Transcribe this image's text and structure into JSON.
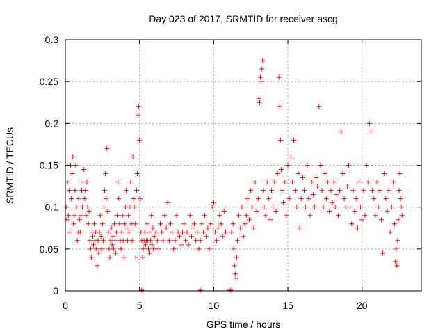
{
  "chart_data": {
    "type": "scatter",
    "title": "Day 023 of 2017, SRMTID for receiver ascg",
    "xlabel": "GPS time / hours",
    "ylabel": "SRMTID / TECUs",
    "xlim": [
      0,
      24
    ],
    "ylim": [
      0,
      0.3
    ],
    "xticks": [
      0,
      5,
      10,
      15,
      20
    ],
    "xtick_labels": [
      "0",
      "5",
      "10",
      "15",
      "20"
    ],
    "yticks": [
      0,
      0.05,
      0.1,
      0.15,
      0.2,
      0.25,
      0.3
    ],
    "ytick_labels": [
      "0",
      "0.05",
      "0.1",
      "0.15",
      "0.2",
      "0.25",
      "0.3"
    ],
    "grid": true,
    "marker": "plus",
    "color": "#ff0000",
    "series": [
      {
        "name": "SRMTID",
        "points": [
          [
            0.05,
            0.1
          ],
          [
            0.1,
            0.085
          ],
          [
            0.15,
            0.13
          ],
          [
            0.2,
            0.09
          ],
          [
            0.25,
            0.12
          ],
          [
            0.3,
            0.07
          ],
          [
            0.35,
            0.15
          ],
          [
            0.4,
            0.11
          ],
          [
            0.45,
            0.14
          ],
          [
            0.5,
            0.16
          ],
          [
            0.55,
            0.08
          ],
          [
            0.6,
            0.09
          ],
          [
            0.65,
            0.12
          ],
          [
            0.7,
            0.15
          ],
          [
            0.75,
            0.1
          ],
          [
            0.8,
            0.06
          ],
          [
            0.85,
            0.07
          ],
          [
            0.9,
            0.11
          ],
          [
            0.95,
            0.085
          ],
          [
            1.0,
            0.07
          ],
          [
            1.05,
            0.09
          ],
          [
            1.1,
            0.12
          ],
          [
            1.15,
            0.1
          ],
          [
            1.2,
            0.13
          ],
          [
            1.25,
            0.145
          ],
          [
            1.3,
            0.11
          ],
          [
            1.35,
            0.12
          ],
          [
            1.4,
            0.09
          ],
          [
            1.45,
            0.13
          ],
          [
            1.5,
            0.1
          ],
          [
            1.55,
            0.08
          ],
          [
            1.6,
            0.095
          ],
          [
            1.65,
            0.06
          ],
          [
            1.7,
            0.05
          ],
          [
            1.75,
            0.04
          ],
          [
            1.8,
            0.07
          ],
          [
            1.85,
            0.065
          ],
          [
            1.9,
            0.055
          ],
          [
            1.95,
            0.08
          ],
          [
            2.0,
            0.06
          ],
          [
            2.05,
            0.07
          ],
          [
            2.1,
            0.05
          ],
          [
            2.15,
            0.03
          ],
          [
            2.2,
            0.06
          ],
          [
            2.25,
            0.045
          ],
          [
            2.3,
            0.07
          ],
          [
            2.35,
            0.09
          ],
          [
            2.4,
            0.065
          ],
          [
            2.45,
            0.05
          ],
          [
            2.5,
            0.08
          ],
          [
            2.55,
            0.06
          ],
          [
            2.6,
            0.1
          ],
          [
            2.65,
            0.12
          ],
          [
            2.7,
            0.14
          ],
          [
            2.75,
            0.11
          ],
          [
            2.8,
            0.17
          ],
          [
            2.85,
            0.095
          ],
          [
            2.9,
            0.07
          ],
          [
            2.95,
            0.05
          ],
          [
            3.0,
            0.04
          ],
          [
            3.05,
            0.06
          ],
          [
            3.1,
            0.075
          ],
          [
            3.15,
            0.055
          ],
          [
            3.2,
            0.065
          ],
          [
            3.25,
            0.05
          ],
          [
            3.3,
            0.08
          ],
          [
            3.35,
            0.06
          ],
          [
            3.4,
            0.045
          ],
          [
            3.45,
            0.07
          ],
          [
            3.5,
            0.09
          ],
          [
            3.55,
            0.13
          ],
          [
            3.6,
            0.11
          ],
          [
            3.65,
            0.08
          ],
          [
            3.7,
            0.06
          ],
          [
            3.75,
            0.05
          ],
          [
            3.8,
            0.07
          ],
          [
            3.85,
            0.09
          ],
          [
            3.9,
            0.06
          ],
          [
            3.95,
            0.04
          ],
          [
            4.0,
            0.08
          ],
          [
            4.05,
            0.1
          ],
          [
            4.1,
            0.12
          ],
          [
            4.15,
            0.075
          ],
          [
            4.2,
            0.06
          ],
          [
            4.25,
            0.09
          ],
          [
            4.3,
            0.07
          ],
          [
            4.35,
            0.1
          ],
          [
            4.4,
            0.13
          ],
          [
            4.45,
            0.08
          ],
          [
            4.5,
            0.06
          ],
          [
            4.55,
            0.16
          ],
          [
            4.6,
            0.11
          ],
          [
            4.65,
            0.1
          ],
          [
            4.7,
            0.08
          ],
          [
            4.75,
            0.04
          ],
          [
            4.8,
            0.12
          ],
          [
            4.85,
            0.14
          ],
          [
            4.9,
            0.21
          ],
          [
            4.95,
            0.22
          ],
          [
            5.0,
            0.18
          ],
          [
            5.05,
            0.11
          ],
          [
            5.1,
            0.07
          ],
          [
            5.15,
            0.06
          ],
          [
            5.2,
            0.04
          ],
          [
            5.25,
            0.05
          ],
          [
            5.3,
            0.06
          ],
          [
            5.35,
            0.07
          ],
          [
            5.4,
            0.055
          ],
          [
            5.45,
            0.06
          ],
          [
            5.5,
            0.08
          ],
          [
            5.55,
            0.06
          ],
          [
            5.6,
            0.05
          ],
          [
            5.65,
            0.07
          ],
          [
            5.7,
            0.045
          ],
          [
            5.75,
            0.06
          ],
          [
            5.8,
            0.09
          ],
          [
            5.85,
            0.055
          ],
          [
            5.9,
            0.075
          ],
          [
            5.95,
            0.05
          ],
          [
            6.0,
            0.065
          ],
          [
            6.1,
            0.07
          ],
          [
            6.2,
            0.06
          ],
          [
            6.3,
            0.05
          ],
          [
            6.4,
            0.08
          ],
          [
            6.5,
            0.07
          ],
          [
            6.6,
            0.06
          ],
          [
            6.7,
            0.09
          ],
          [
            6.8,
            0.075
          ],
          [
            6.9,
            0.105
          ],
          [
            7.0,
            0.06
          ],
          [
            7.1,
            0.08
          ],
          [
            7.2,
            0.07
          ],
          [
            7.3,
            0.05
          ],
          [
            7.4,
            0.06
          ],
          [
            7.5,
            0.09
          ],
          [
            7.6,
            0.07
          ],
          [
            7.7,
            0.065
          ],
          [
            7.8,
            0.055
          ],
          [
            7.9,
            0.07
          ],
          [
            8.0,
            0.08
          ],
          [
            8.1,
            0.06
          ],
          [
            8.2,
            0.07
          ],
          [
            8.3,
            0.055
          ],
          [
            8.4,
            0.09
          ],
          [
            8.5,
            0.065
          ],
          [
            8.6,
            0.075
          ],
          [
            8.7,
            0.08
          ],
          [
            8.8,
            0.06
          ],
          [
            8.9,
            0.07
          ],
          [
            9.0,
            0.05
          ],
          [
            9.1,
            0.06
          ],
          [
            9.2,
            0.08
          ],
          [
            9.3,
            0.07
          ],
          [
            9.4,
            0.09
          ],
          [
            9.5,
            0.065
          ],
          [
            9.6,
            0.075
          ],
          [
            9.7,
            0.05
          ],
          [
            9.8,
            0.08
          ],
          [
            9.9,
            0.1
          ],
          [
            10.0,
            0.105
          ],
          [
            10.1,
            0.07
          ],
          [
            10.2,
            0.06
          ],
          [
            10.3,
            0.075
          ],
          [
            10.4,
            0.09
          ],
          [
            10.5,
            0.08
          ],
          [
            10.6,
            0.065
          ],
          [
            10.7,
            0.095
          ],
          [
            10.8,
            0.07
          ],
          [
            11.2,
            0.07
          ],
          [
            11.3,
            0.08
          ],
          [
            11.35,
            0.05
          ],
          [
            11.4,
            0.03
          ],
          [
            11.45,
            0.02
          ],
          [
            11.5,
            0.015
          ],
          [
            11.55,
            0.04
          ],
          [
            11.6,
            0.06
          ],
          [
            11.7,
            0.09
          ],
          [
            11.8,
            0.075
          ],
          [
            11.9,
            0.1
          ],
          [
            12.0,
            0.065
          ],
          [
            12.1,
            0.08
          ],
          [
            12.2,
            0.09
          ],
          [
            12.3,
            0.11
          ],
          [
            12.4,
            0.085
          ],
          [
            12.5,
            0.12
          ],
          [
            12.6,
            0.1
          ],
          [
            12.7,
            0.075
          ],
          [
            12.8,
            0.13
          ],
          [
            12.9,
            0.095
          ],
          [
            13.0,
            0.11
          ],
          [
            13.05,
            0.23
          ],
          [
            13.1,
            0.225
          ],
          [
            13.15,
            0.255
          ],
          [
            13.2,
            0.25
          ],
          [
            13.25,
            0.265
          ],
          [
            13.3,
            0.275
          ],
          [
            13.35,
            0.12
          ],
          [
            13.4,
            0.1
          ],
          [
            13.5,
            0.09
          ],
          [
            13.6,
            0.13
          ],
          [
            13.7,
            0.11
          ],
          [
            13.8,
            0.085
          ],
          [
            13.9,
            0.12
          ],
          [
            14.0,
            0.1
          ],
          [
            14.1,
            0.13
          ],
          [
            14.2,
            0.095
          ],
          [
            14.3,
            0.14
          ],
          [
            14.4,
            0.255
          ],
          [
            14.45,
            0.22
          ],
          [
            14.5,
            0.18
          ],
          [
            14.55,
            0.145
          ],
          [
            14.6,
            0.12
          ],
          [
            14.7,
            0.105
          ],
          [
            14.8,
            0.13
          ],
          [
            14.9,
            0.09
          ],
          [
            15.0,
            0.15
          ],
          [
            15.1,
            0.11
          ],
          [
            15.2,
            0.16
          ],
          [
            15.3,
            0.13
          ],
          [
            15.4,
            0.18
          ],
          [
            15.5,
            0.12
          ],
          [
            15.6,
            0.1
          ],
          [
            15.7,
            0.14
          ],
          [
            15.8,
            0.075
          ],
          [
            15.9,
            0.11
          ],
          [
            16.0,
            0.135
          ],
          [
            16.1,
            0.12
          ],
          [
            16.2,
            0.1
          ],
          [
            16.3,
            0.15
          ],
          [
            16.4,
            0.11
          ],
          [
            16.5,
            0.09
          ],
          [
            16.6,
            0.13
          ],
          [
            16.7,
            0.115
          ],
          [
            16.8,
            0.1
          ],
          [
            16.9,
            0.135
          ],
          [
            17.0,
            0.125
          ],
          [
            17.1,
            0.22
          ],
          [
            17.2,
            0.15
          ],
          [
            17.3,
            0.12
          ],
          [
            17.4,
            0.1
          ],
          [
            17.5,
            0.14
          ],
          [
            17.6,
            0.11
          ],
          [
            17.7,
            0.13
          ],
          [
            17.8,
            0.095
          ],
          [
            17.9,
            0.12
          ],
          [
            18.0,
            0.105
          ],
          [
            18.1,
            0.13
          ],
          [
            18.2,
            0.1
          ],
          [
            18.3,
            0.115
          ],
          [
            18.4,
            0.09
          ],
          [
            18.5,
            0.12
          ],
          [
            18.6,
            0.19
          ],
          [
            18.7,
            0.14
          ],
          [
            18.8,
            0.11
          ],
          [
            18.9,
            0.1
          ],
          [
            19.0,
            0.125
          ],
          [
            19.1,
            0.15
          ],
          [
            19.2,
            0.1
          ],
          [
            19.3,
            0.08
          ],
          [
            19.4,
            0.12
          ],
          [
            19.5,
            0.095
          ],
          [
            19.6,
            0.11
          ],
          [
            19.7,
            0.075
          ],
          [
            19.8,
            0.13
          ],
          [
            19.9,
            0.1
          ],
          [
            20.0,
            0.085
          ],
          [
            20.1,
            0.12
          ],
          [
            20.2,
            0.09
          ],
          [
            20.3,
            0.15
          ],
          [
            20.4,
            0.13
          ],
          [
            20.5,
            0.2
          ],
          [
            20.6,
            0.19
          ],
          [
            20.7,
            0.12
          ],
          [
            20.8,
            0.11
          ],
          [
            20.9,
            0.09
          ],
          [
            21.0,
            0.13
          ],
          [
            21.1,
            0.1
          ],
          [
            21.2,
            0.12
          ],
          [
            21.3,
            0.085
          ],
          [
            21.4,
            0.045
          ],
          [
            21.5,
            0.14
          ],
          [
            21.6,
            0.11
          ],
          [
            21.7,
            0.095
          ],
          [
            21.8,
            0.12
          ],
          [
            21.9,
            0.07
          ],
          [
            22.0,
            0.1
          ],
          [
            22.1,
            0.13
          ],
          [
            22.2,
            0.08
          ],
          [
            22.25,
            0.035
          ],
          [
            22.3,
            0.05
          ],
          [
            22.35,
            0.03
          ],
          [
            22.4,
            0.06
          ],
          [
            22.45,
            0.085
          ],
          [
            22.5,
            0.12
          ],
          [
            22.55,
            0.14
          ],
          [
            22.6,
            0.11
          ],
          [
            22.65,
            0.1
          ],
          [
            22.7,
            0.09
          ]
        ]
      }
    ],
    "zero_markers": [
      [
        5.15,
        0
      ],
      [
        9.1,
        0
      ],
      [
        11.05,
        0
      ],
      [
        11.15,
        0
      ]
    ]
  }
}
